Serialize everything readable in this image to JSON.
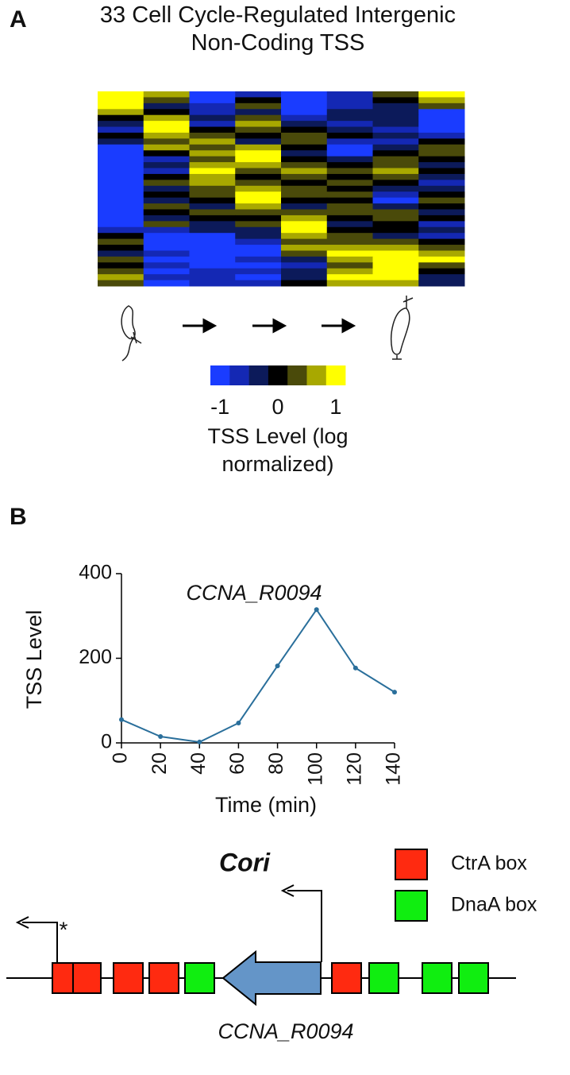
{
  "panel_labels": [
    "A",
    "B"
  ],
  "chart_data": [
    {
      "type": "heatmap",
      "title": "33 Cell Cycle-Regulated Intergenic Non-Coding TSS",
      "colorscale": [
        "#1a3cff",
        "#1428b4",
        "#0c1a5a",
        "#000000",
        "#4a4a0a",
        "#a8a800",
        "#ffff00"
      ],
      "zlim": [
        -1,
        1
      ],
      "zticks": [
        -1,
        0,
        1
      ],
      "colorbar_label": "TSS Level (log normalized)",
      "values": [
        [
          1,
          0.7,
          -1,
          -0.7,
          -1,
          -0.7,
          0.3,
          1
        ],
        [
          1,
          0.3,
          -1,
          0,
          -1,
          -0.7,
          0,
          0.7
        ],
        [
          1,
          -0.3,
          -0.7,
          0.3,
          -1,
          -0.7,
          -0.3,
          0.3
        ],
        [
          0.7,
          0,
          -0.7,
          -0.3,
          -1,
          -0.3,
          -0.3,
          -1
        ],
        [
          0,
          0.7,
          -0.3,
          0.3,
          -0.7,
          -0.3,
          -0.3,
          -1
        ],
        [
          -0.3,
          1,
          -0.7,
          0.7,
          -0.3,
          -0.7,
          -0.3,
          -1
        ],
        [
          -0.7,
          1,
          0,
          0.3,
          0,
          -0.3,
          -0.7,
          -1
        ],
        [
          0,
          0.7,
          0.3,
          0,
          0.3,
          0,
          -0.3,
          -0.7
        ],
        [
          -0.3,
          0.3,
          0.7,
          -0.3,
          0.3,
          -0.7,
          -0.7,
          0
        ],
        [
          -1,
          0.7,
          0.3,
          0.7,
          0,
          -1,
          -0.3,
          0.3
        ],
        [
          -1,
          0,
          0.7,
          1,
          -0.3,
          -1,
          0,
          0.3
        ],
        [
          -1,
          -0.7,
          0.3,
          1,
          0,
          -0.3,
          0.3,
          0
        ],
        [
          -1,
          -0.3,
          0.7,
          0.7,
          0.3,
          0,
          0.3,
          -0.3
        ],
        [
          -1,
          -0.7,
          1,
          0.3,
          0.7,
          0.3,
          0.7,
          0
        ],
        [
          -1,
          0,
          0.7,
          0,
          0.3,
          0,
          0.3,
          -0.3
        ],
        [
          -1,
          0.3,
          0.7,
          0.3,
          0,
          0.3,
          0,
          -0.7
        ],
        [
          -1,
          -0.3,
          0.3,
          0.7,
          0.3,
          0,
          -0.3,
          -0.3
        ],
        [
          -1,
          0,
          0.3,
          1,
          0.3,
          0.3,
          -0.7,
          0
        ],
        [
          -1,
          -0.3,
          0,
          1,
          0,
          0,
          -1,
          0.3
        ],
        [
          -1,
          0.3,
          -0.3,
          0.7,
          -0.3,
          0.3,
          -0.3,
          0
        ],
        [
          -1,
          0,
          0.3,
          0.3,
          0.3,
          0.3,
          0.3,
          -0.3
        ],
        [
          -1,
          -0.3,
          0,
          0,
          0.7,
          0,
          0.3,
          0
        ],
        [
          -1,
          0.3,
          -0.3,
          0.3,
          1,
          -0.3,
          0,
          -0.7
        ],
        [
          -0.7,
          -0.7,
          -0.3,
          -0.3,
          1,
          0,
          0,
          -0.3
        ],
        [
          0,
          -1,
          -1,
          -0.3,
          0.7,
          0.3,
          -0.3,
          -0.7
        ],
        [
          0.3,
          -1,
          -1,
          -0.7,
          0.3,
          0.3,
          0.3,
          0
        ],
        [
          0,
          -1,
          -1,
          -1,
          0.7,
          0.7,
          0.7,
          0.3
        ],
        [
          -0.3,
          -0.7,
          -1,
          -1,
          0.3,
          1,
          1,
          0.7
        ],
        [
          0.3,
          -1,
          -1,
          -0.7,
          -0.3,
          0.7,
          1,
          1
        ],
        [
          0,
          -0.7,
          -1,
          -1,
          -0.7,
          0.3,
          1,
          0.3
        ],
        [
          0.3,
          -1,
          -0.7,
          -0.7,
          -0.3,
          0.7,
          1,
          0
        ],
        [
          0.7,
          -0.7,
          -0.7,
          -1,
          -0.3,
          1,
          1,
          -0.3
        ],
        [
          0.3,
          -1,
          -0.7,
          -0.7,
          0,
          0.7,
          0.7,
          -0.3
        ]
      ]
    },
    {
      "type": "line",
      "title": "CCNA_R0094",
      "xlabel": "Time (min)",
      "ylabel": "TSS Level",
      "x": [
        0,
        20,
        40,
        60,
        80,
        100,
        120,
        140
      ],
      "values": [
        55,
        15,
        2,
        47,
        182,
        315,
        177,
        120
      ],
      "color": "#2a6f9b",
      "xlim": [
        0,
        140
      ],
      "ylim": [
        0,
        400
      ],
      "xticks": [
        0,
        20,
        40,
        60,
        80,
        100,
        120,
        140
      ],
      "yticks": [
        0,
        200,
        400
      ]
    }
  ],
  "diagram": {
    "title": "Cori",
    "marker": "*",
    "gene_label": "CCNA_R0094",
    "gene_color": "#6495c8",
    "legend": [
      {
        "label": "CtrA box",
        "color": "#ff2a10"
      },
      {
        "label": "DnaA box",
        "color": "#10ee10"
      }
    ]
  }
}
